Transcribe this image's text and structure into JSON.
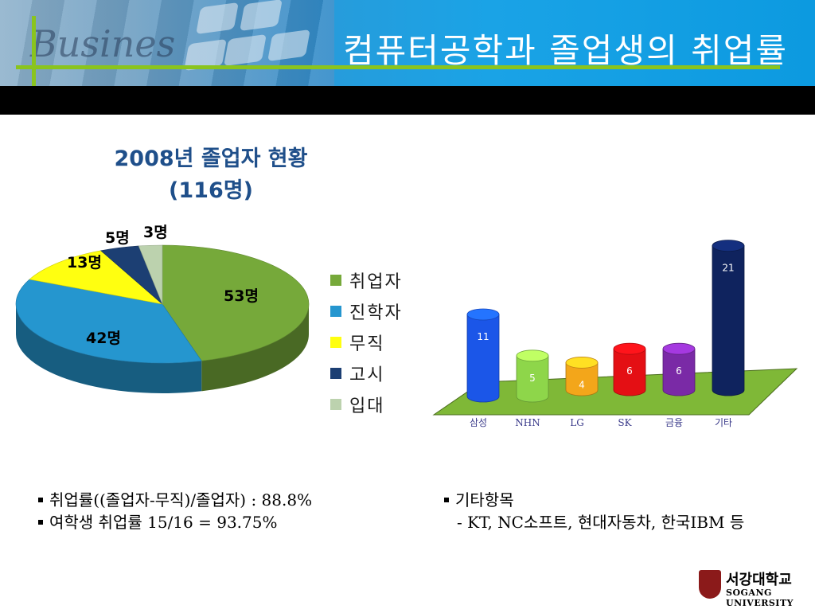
{
  "header": {
    "brand_text": "Busines",
    "title": "컴퓨터공학과 졸업생의 취업률"
  },
  "pie_chart": {
    "title_line1": "2008년 졸업자 현황",
    "title_line2": "(116명)"
  },
  "chart_data": [
    {
      "type": "pie",
      "title": "2008년 졸업자 현황 (116명)",
      "categories": [
        "취업자",
        "진학자",
        "무직",
        "고시",
        "입대"
      ],
      "values": [
        53,
        42,
        13,
        5,
        3
      ],
      "data_labels": [
        "53명",
        "42명",
        "13명",
        "5명",
        "3명"
      ],
      "colors": [
        "#76a93a",
        "#2596cf",
        "#ffff10",
        "#1c3f73",
        "#bcd2ae"
      ],
      "legend_position": "right"
    },
    {
      "type": "bar",
      "title": "",
      "categories": [
        "삼성",
        "NHN",
        "LG",
        "SK",
        "금융",
        "기타"
      ],
      "values": [
        11,
        5,
        4,
        6,
        6,
        21
      ],
      "colors": [
        "#1b56e8",
        "#8ed64a",
        "#f3a61a",
        "#e40f14",
        "#7a2aa6",
        "#0f235e"
      ],
      "grid": false
    }
  ],
  "bullets_left": [
    "취업률((졸업자-무직)/졸업자) : 88.8%",
    "여학생 취업률 15/16 = 93.75%"
  ],
  "bullets_right": {
    "heading": "기타항목",
    "detail": "- KT, NC소프트, 현대자동차, 한국IBM 등"
  },
  "logo": {
    "ko": "서강대학교",
    "en": "SOGANG UNIVERSITY"
  }
}
